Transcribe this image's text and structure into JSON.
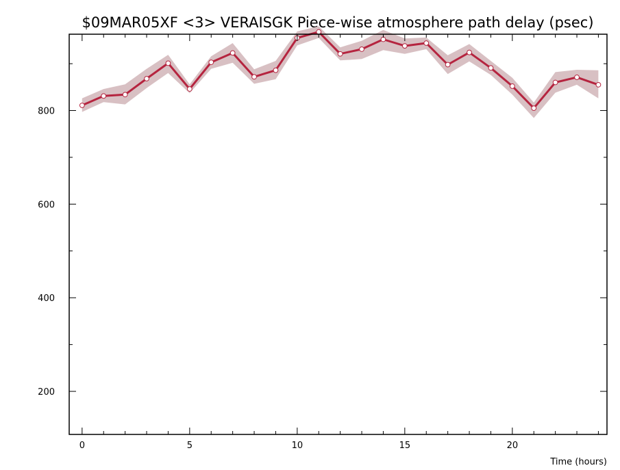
{
  "chart_data": {
    "type": "line",
    "title": "$09MAR05XF <3>   VERAISGK   Piece-wise atmosphere path delay (psec)",
    "xlabel": "Time (hours)",
    "ylabel": "",
    "xlim": [
      -0.6,
      24.4
    ],
    "ylim": [
      108,
      963
    ],
    "x_ticks": [
      0,
      5,
      10,
      15,
      20
    ],
    "y_ticks": [
      200,
      400,
      600,
      800
    ],
    "grid": false,
    "colors": {
      "line": "#b5243f",
      "band": "#d8c0c3",
      "marker_fill": "#ffffff"
    },
    "series": [
      {
        "x": [
          0,
          1,
          2,
          3,
          4,
          5,
          6,
          7,
          8,
          9,
          10,
          11,
          12,
          13,
          14,
          15,
          16,
          17,
          18,
          19,
          20,
          21,
          22,
          23,
          24
        ],
        "values": [
          811,
          831,
          834,
          868,
          901,
          846,
          903,
          923,
          872,
          886,
          955,
          968,
          921,
          931,
          952,
          938,
          944,
          898,
          924,
          891,
          852,
          805,
          860,
          871,
          855
        ],
        "band_upper": [
          826,
          846,
          856,
          889,
          919,
          856,
          916,
          944,
          888,
          906,
          969,
          980,
          935,
          949,
          972,
          954,
          956,
          918,
          942,
          906,
          870,
          817,
          882,
          887,
          886
        ],
        "band_lower": [
          797,
          818,
          813,
          848,
          880,
          837,
          889,
          902,
          857,
          867,
          939,
          955,
          907,
          910,
          929,
          921,
          931,
          878,
          905,
          876,
          834,
          784,
          838,
          855,
          826
        ]
      }
    ]
  }
}
